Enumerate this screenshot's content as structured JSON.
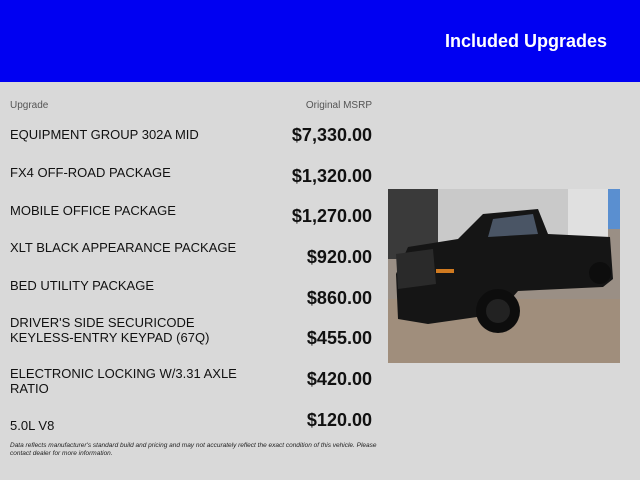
{
  "header": {
    "title": "Included Upgrades"
  },
  "columns": {
    "upgrade": "Upgrade",
    "msrp": "Original MSRP"
  },
  "rows": [
    {
      "name": "EQUIPMENT GROUP 302A MID",
      "price": "$7,330.00"
    },
    {
      "name": "FX4 OFF-ROAD PACKAGE",
      "price": "$1,320.00"
    },
    {
      "name": "MOBILE OFFICE PACKAGE",
      "price": "$1,270.00"
    },
    {
      "name": "XLT BLACK APPEARANCE PACKAGE",
      "price": "$920.00"
    },
    {
      "name": "BED UTILITY PACKAGE",
      "price": "$860.00"
    },
    {
      "name": "DRIVER'S SIDE SECURICODE KEYLESS-ENTRY KEYPAD (67Q)",
      "price": "$455.00"
    },
    {
      "name": "ELECTRONIC LOCKING W/3.31 AXLE RATIO",
      "price": "$420.00"
    },
    {
      "name": "5.0L V8",
      "price": "$120.00"
    }
  ],
  "disclaimer": "Data reflects manufacturer's standard build and pricing and may not accurately reflect the exact condition of this vehicle. Please contact dealer for more information.",
  "colors": {
    "header": "#0000f2",
    "background": "#d9d9d9"
  }
}
